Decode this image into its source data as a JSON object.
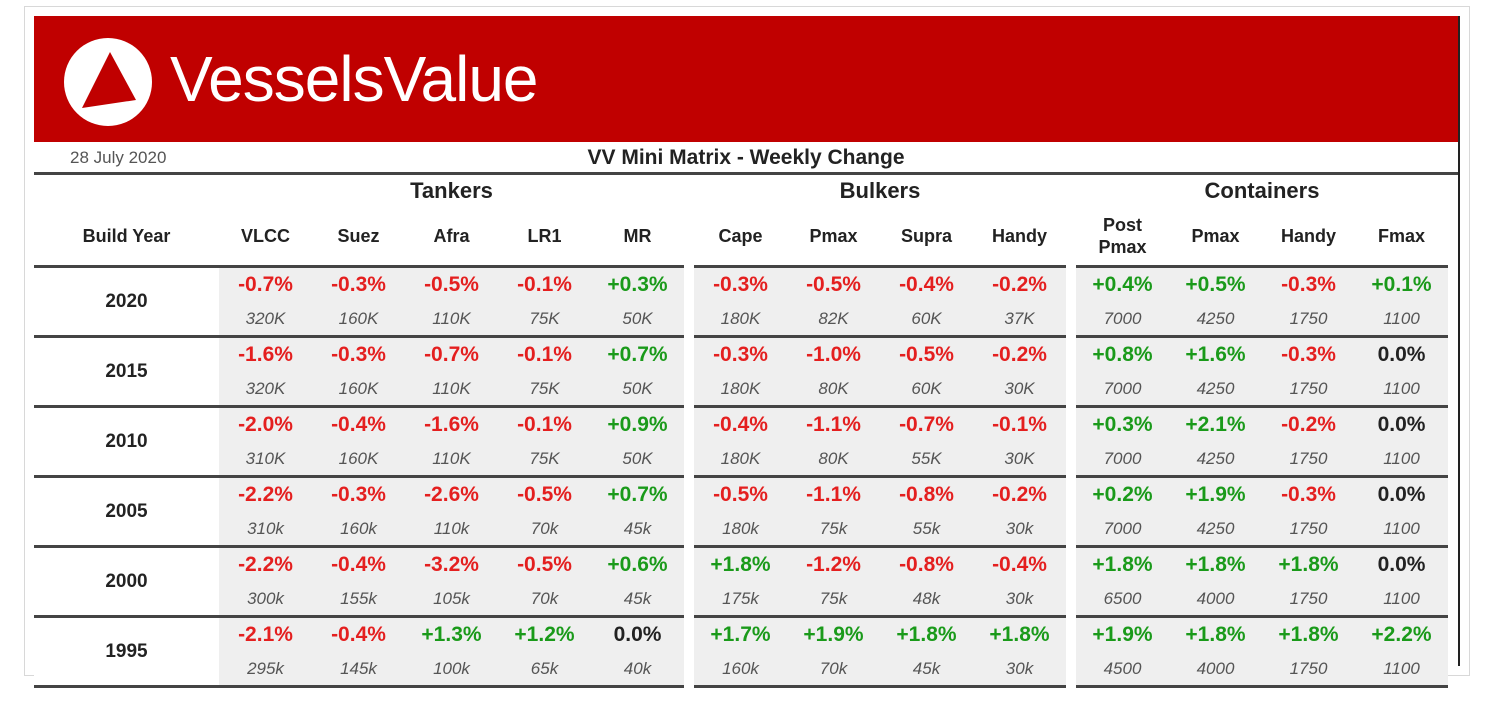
{
  "brand": {
    "name": "VesselsValue",
    "color": "#c00000"
  },
  "report": {
    "date": "28 July 2020",
    "title": "VV Mini Matrix - Weekly Change"
  },
  "table": {
    "build_year_label": "Build Year",
    "groups": [
      {
        "name": "Tankers",
        "columns": [
          "VLCC",
          "Suez",
          "Afra",
          "LR1",
          "MR"
        ]
      },
      {
        "name": "Bulkers",
        "columns": [
          "Cape",
          "Pmax",
          "Supra",
          "Handy"
        ]
      },
      {
        "name": "Containers",
        "columns": [
          "Post\nPmax",
          "Pmax",
          "Handy",
          "Fmax"
        ]
      }
    ],
    "rows": [
      {
        "year": "2020",
        "changes": [
          "-0.7%",
          "-0.3%",
          "-0.5%",
          "-0.1%",
          "+0.3%",
          "-0.3%",
          "-0.5%",
          "-0.4%",
          "-0.2%",
          "+0.4%",
          "+0.5%",
          "-0.3%",
          "+0.1%"
        ],
        "sizes": [
          "320K",
          "160K",
          "110K",
          "75K",
          "50K",
          "180K",
          "82K",
          "60K",
          "37K",
          "7000",
          "4250",
          "1750",
          "1100"
        ]
      },
      {
        "year": "2015",
        "changes": [
          "-1.6%",
          "-0.3%",
          "-0.7%",
          "-0.1%",
          "+0.7%",
          "-0.3%",
          "-1.0%",
          "-0.5%",
          "-0.2%",
          "+0.8%",
          "+1.6%",
          "-0.3%",
          "0.0%"
        ],
        "sizes": [
          "320K",
          "160K",
          "110K",
          "75K",
          "50K",
          "180K",
          "80K",
          "60K",
          "30K",
          "7000",
          "4250",
          "1750",
          "1100"
        ]
      },
      {
        "year": "2010",
        "changes": [
          "-2.0%",
          "-0.4%",
          "-1.6%",
          "-0.1%",
          "+0.9%",
          "-0.4%",
          "-1.1%",
          "-0.7%",
          "-0.1%",
          "+0.3%",
          "+2.1%",
          "-0.2%",
          "0.0%"
        ],
        "sizes": [
          "310K",
          "160K",
          "110K",
          "75K",
          "50K",
          "180K",
          "80K",
          "55K",
          "30K",
          "7000",
          "4250",
          "1750",
          "1100"
        ]
      },
      {
        "year": "2005",
        "changes": [
          "-2.2%",
          "-0.3%",
          "-2.6%",
          "-0.5%",
          "+0.7%",
          "-0.5%",
          "-1.1%",
          "-0.8%",
          "-0.2%",
          "+0.2%",
          "+1.9%",
          "-0.3%",
          "0.0%"
        ],
        "sizes": [
          "310k",
          "160k",
          "110k",
          "70k",
          "45k",
          "180k",
          "75k",
          "55k",
          "30k",
          "7000",
          "4250",
          "1750",
          "1100"
        ]
      },
      {
        "year": "2000",
        "changes": [
          "-2.2%",
          "-0.4%",
          "-3.2%",
          "-0.5%",
          "+0.6%",
          "+1.8%",
          "-1.2%",
          "-0.8%",
          "-0.4%",
          "+1.8%",
          "+1.8%",
          "+1.8%",
          "0.0%"
        ],
        "sizes": [
          "300k",
          "155k",
          "105k",
          "70k",
          "45k",
          "175k",
          "75k",
          "48k",
          "30k",
          "6500",
          "4000",
          "1750",
          "1100"
        ]
      },
      {
        "year": "1995",
        "changes": [
          "-2.1%",
          "-0.4%",
          "+1.3%",
          "+1.2%",
          "0.0%",
          "+1.7%",
          "+1.9%",
          "+1.8%",
          "+1.8%",
          "+1.9%",
          "+1.8%",
          "+1.8%",
          "+2.2%"
        ],
        "sizes": [
          "295k",
          "145k",
          "100k",
          "65k",
          "40k",
          "160k",
          "70k",
          "45k",
          "30k",
          "4500",
          "4000",
          "1750",
          "1100"
        ]
      }
    ]
  },
  "colors": {
    "negative": "#e41f1f",
    "positive": "#1a9a1a",
    "neutral": "#222222",
    "cell_bg": "#efefef"
  }
}
